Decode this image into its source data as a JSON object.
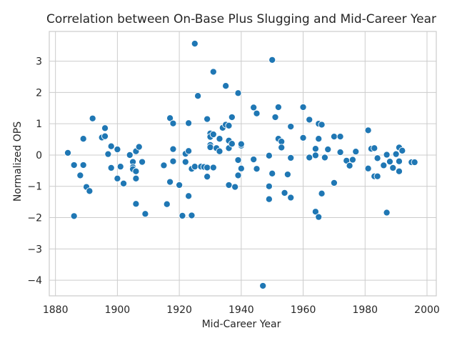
{
  "chart_data": {
    "type": "scatter",
    "title": "Correlation between On-Base Plus Slugging and Mid-Career Year",
    "xlabel": "Mid-Career Year",
    "ylabel": "Normalized OPS",
    "xlim": [
      1878,
      2003
    ],
    "ylim": [
      -4.5,
      3.95
    ],
    "x_ticks": [
      1880,
      1900,
      1920,
      1940,
      1960,
      1980,
      2000
    ],
    "y_ticks": [
      -4,
      -3,
      -2,
      -1,
      0,
      1,
      2,
      3
    ],
    "x_tick_labels": [
      "1880",
      "1900",
      "1920",
      "1940",
      "1960",
      "1980",
      "2000"
    ],
    "y_tick_labels": [
      "−4",
      "−3",
      "−2",
      "−1",
      "0",
      "1",
      "2",
      "3"
    ],
    "grid": true,
    "marker_color": "#1f77b4",
    "marker_edge_color": "#ffffff",
    "background_color": "#ffffff",
    "grid_color": "#cccccc",
    "x": [
      1884,
      1886,
      1886,
      1888,
      1889,
      1889,
      1890,
      1891,
      1892,
      1895,
      1896,
      1896,
      1897,
      1898,
      1898,
      1900,
      1900,
      1901,
      1902,
      1904,
      1905,
      1905,
      1905,
      1906,
      1906,
      1906,
      1906,
      1907,
      1908,
      1909,
      1915,
      1916,
      1917,
      1917,
      1918,
      1918,
      1918,
      1920,
      1921,
      1922,
      1922,
      1923,
      1923,
      1923,
      1924,
      1924,
      1925,
      1925,
      1926,
      1927,
      1928,
      1929,
      1929,
      1929,
      1930,
      1930,
      1930,
      1930,
      1931,
      1931,
      1931,
      1932,
      1933,
      1933,
      1934,
      1935,
      1935,
      1936,
      1936,
      1936,
      1936,
      1937,
      1937,
      1938,
      1939,
      1939,
      1939,
      1940,
      1940,
      1940,
      1944,
      1944,
      1945,
      1945,
      1947,
      1949,
      1949,
      1949,
      1950,
      1950,
      1951,
      1952,
      1952,
      1953,
      1953,
      1954,
      1955,
      1956,
      1956,
      1956,
      1960,
      1960,
      1962,
      1962,
      1964,
      1964,
      1964,
      1965,
      1965,
      1965,
      1966,
      1966,
      1967,
      1968,
      1970,
      1970,
      1972,
      1972,
      1974,
      1975,
      1976,
      1977,
      1981,
      1981,
      1982,
      1983,
      1983,
      1984,
      1984,
      1986,
      1987,
      1987,
      1988,
      1989,
      1990,
      1991,
      1991,
      1991,
      1992,
      1995,
      1996
    ],
    "y": [
      0.07,
      -0.32,
      -1.95,
      -0.65,
      0.52,
      -0.32,
      -1.02,
      -1.15,
      1.17,
      0.56,
      0.86,
      0.6,
      0.03,
      0.28,
      -0.41,
      0.18,
      -0.75,
      -0.37,
      -0.91,
      0.0,
      -0.22,
      -0.39,
      -0.45,
      -1.56,
      -0.75,
      -0.52,
      0.12,
      0.26,
      -0.22,
      -1.88,
      -0.33,
      -1.57,
      1.18,
      -0.86,
      1.01,
      0.19,
      -0.2,
      -0.96,
      -1.94,
      -0.22,
      0.04,
      0.13,
      1.02,
      -1.31,
      -1.93,
      -0.44,
      -0.37,
      3.56,
      1.89,
      -0.37,
      -0.38,
      -0.69,
      1.15,
      -0.4,
      0.69,
      0.58,
      0.32,
      0.25,
      -0.4,
      2.66,
      0.66,
      0.22,
      0.12,
      0.52,
      0.87,
      2.21,
      0.97,
      0.46,
      0.22,
      0.94,
      -0.96,
      1.21,
      0.36,
      -1.02,
      1.98,
      -0.16,
      -0.65,
      0.3,
      0.35,
      -0.43,
      1.52,
      -0.14,
      1.33,
      -0.44,
      -4.18,
      -1.0,
      -0.02,
      -1.41,
      3.04,
      -0.59,
      1.21,
      1.53,
      0.52,
      0.43,
      0.24,
      -1.21,
      -0.62,
      0.91,
      -0.09,
      -1.36,
      1.53,
      0.55,
      1.13,
      -0.08,
      0.2,
      -1.81,
      -0.01,
      1.0,
      0.52,
      -1.98,
      -1.23,
      0.97,
      -0.08,
      0.18,
      -0.89,
      0.59,
      0.09,
      0.59,
      -0.18,
      -0.34,
      -0.15,
      0.11,
      0.79,
      -0.43,
      0.2,
      0.22,
      -0.68,
      -0.1,
      -0.68,
      -0.33,
      0.01,
      -1.84,
      -0.21,
      -0.41,
      0.03,
      0.24,
      -0.52,
      -0.2,
      0.14,
      -0.23,
      -0.23
    ]
  }
}
